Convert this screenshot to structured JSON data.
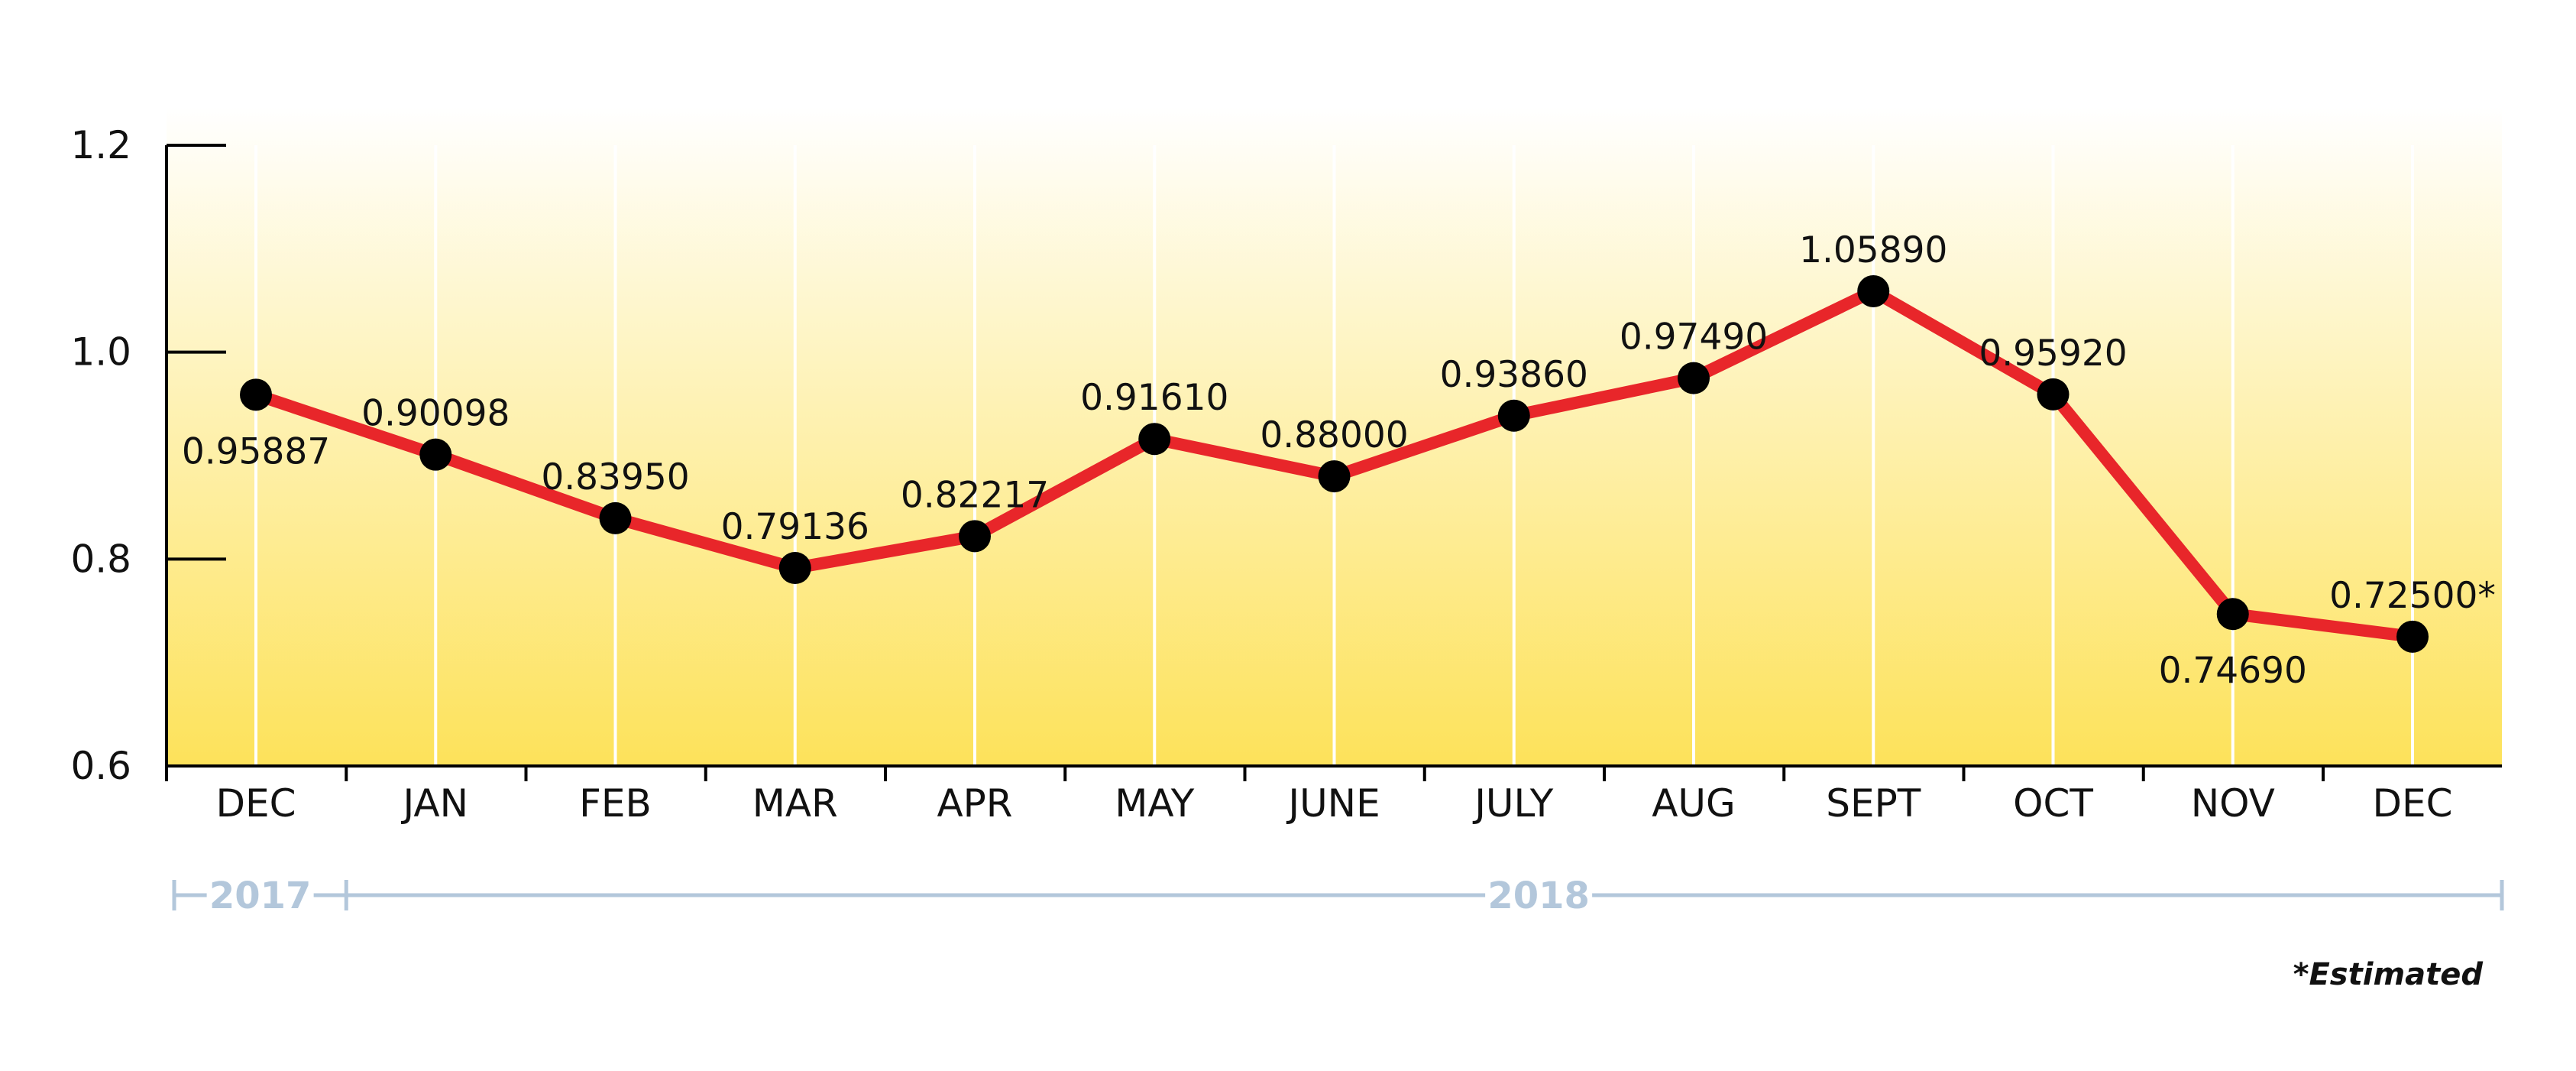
{
  "chart_data": {
    "type": "line",
    "categories": [
      "DEC",
      "JAN",
      "FEB",
      "MAR",
      "APR",
      "MAY",
      "JUNE",
      "JULY",
      "AUG",
      "SEPT",
      "OCT",
      "NOV",
      "DEC"
    ],
    "series": [
      {
        "values": [
          0.95887,
          0.90098,
          0.8395,
          0.79136,
          0.82217,
          0.9161,
          0.88,
          0.9386,
          0.9749,
          1.0589,
          0.9592,
          0.7469,
          0.725
        ]
      }
    ],
    "data_labels": [
      "0.95887",
      "0.90098",
      "0.83950",
      "0.79136",
      "0.82217",
      "0.91610",
      "0.88000",
      "0.93860",
      "0.97490",
      "1.05890",
      "0.95920",
      "0.74690",
      "0.72500*"
    ],
    "label_placement": [
      "below",
      "above",
      "above",
      "above",
      "above",
      "above",
      "above",
      "above",
      "above",
      "above",
      "above",
      "below",
      "above"
    ],
    "yticks": [
      "0.6",
      "0.8",
      "1.0",
      "1.2"
    ],
    "ylim": [
      0.6,
      1.2
    ],
    "title": "",
    "xlabel": "",
    "ylabel": "",
    "grid": "vertical",
    "legend": "none",
    "years": [
      {
        "label": "2017",
        "from_index": 0,
        "to_index": 0
      },
      {
        "label": "2018",
        "from_index": 1,
        "to_index": 12
      }
    ],
    "footnote": "*Estimated",
    "colors": {
      "line": "#e8262a",
      "marker": "#000000",
      "background_top": "#ffffff",
      "background_bottom": "#fde25a",
      "year_bar": "#b3c7db",
      "gridline": "#ffffff",
      "axis": "#000000"
    }
  }
}
